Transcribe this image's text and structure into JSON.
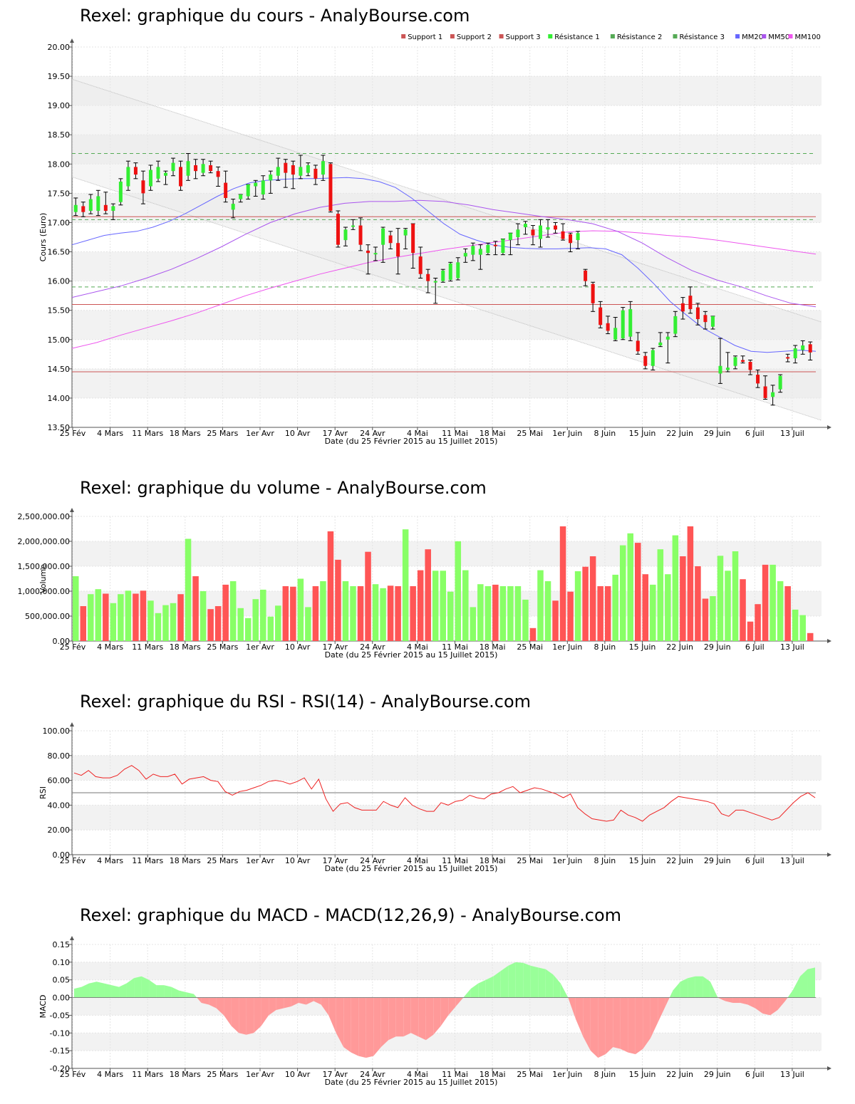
{
  "colors": {
    "up": "#33ee33",
    "down": "#ee1111",
    "vol_up": "#88ff66",
    "vol_down": "#ff5555",
    "support": "#cc5555",
    "resistance": "#55aa55",
    "mm20": "#6666ff",
    "mm50": "#aa55ee",
    "mm100": "#ee55ee",
    "rsi": "#ee2222",
    "macd_pos": "#99ff99",
    "macd_neg": "#ff9999"
  },
  "x_axis": {
    "label": "Date (du 25 Février 2015 au 15 Juillet 2015)",
    "ticks": [
      "25 Fév",
      "4 Mars",
      "11 Mars",
      "18 Mars",
      "25 Mars",
      "1er Avr",
      "10 Avr",
      "17 Avr",
      "24 Avr",
      "4 Mai",
      "11 Mai",
      "18 Mai",
      "25 Mai",
      "1er Juin",
      "8 Juin",
      "15 Juin",
      "22 Juin",
      "29 Juin",
      "6 Juil",
      "13 Juil"
    ],
    "tick_index": [
      0,
      5,
      10,
      15,
      20,
      25,
      30,
      35,
      40,
      46,
      51,
      56,
      61,
      66,
      71,
      76,
      81,
      86,
      91,
      96
    ]
  },
  "price_chart": {
    "title": "Rexel: graphique du cours - AnalyBourse.com",
    "ylabel": "Cours (Euro)",
    "yticks": [
      "13.50",
      "14.00",
      "14.50",
      "15.00",
      "15.50",
      "16.00",
      "16.50",
      "17.00",
      "17.50",
      "18.00",
      "18.50",
      "19.00",
      "19.50",
      "20.00"
    ],
    "legend": [
      "Support 1",
      "Support 2",
      "Support 3",
      "Résistance 1",
      "Résistance 2",
      "Résistance 3",
      "MM20",
      "MM50",
      "MM100"
    ]
  },
  "volume_chart": {
    "title": "Rexel: graphique du volume - AnalyBourse.com",
    "ylabel": "Volume",
    "yticks": [
      "0.00",
      "500,000.00",
      "1,000,000.00",
      "1,500,000.00",
      "2,000,000.00",
      "2,500,000.00"
    ]
  },
  "rsi_chart": {
    "title": "Rexel: graphique du RSI - RSI(14) - AnalyBourse.com",
    "ylabel": "RSI",
    "yticks": [
      "0.00",
      "20.00",
      "40.00",
      "60.00",
      "80.00",
      "100.00"
    ]
  },
  "macd_chart": {
    "title": "Rexel: graphique du MACD - MACD(12,26,9) - AnalyBourse.com",
    "ylabel": "MACD",
    "yticks": [
      "-0.20",
      "-0.15",
      "-0.10",
      "-0.05",
      "0.00",
      "0.05",
      "0.10",
      "0.15"
    ]
  },
  "chart_data": [
    {
      "type": "candlestick",
      "title": "Rexel: graphique du cours - AnalyBourse.com",
      "xlabel": "Date (du 25 Février 2015 au 15 Juillet 2015)",
      "ylabel": "Cours (Euro)",
      "ylim": [
        13.5,
        20.0
      ],
      "grid": true,
      "legend_position": "top-right",
      "ohlc": [
        [
          17.18,
          17.42,
          17.12,
          17.3
        ],
        [
          17.28,
          17.35,
          17.1,
          17.18
        ],
        [
          17.2,
          17.48,
          17.15,
          17.4
        ],
        [
          17.2,
          17.55,
          17.12,
          17.45
        ],
        [
          17.3,
          17.52,
          17.15,
          17.2
        ],
        [
          17.2,
          17.32,
          17.05,
          17.28
        ],
        [
          17.35,
          17.75,
          17.3,
          17.7
        ],
        [
          17.62,
          18.05,
          17.55,
          17.95
        ],
        [
          17.95,
          18.02,
          17.75,
          17.82
        ],
        [
          17.72,
          17.88,
          17.32,
          17.5
        ],
        [
          17.62,
          17.98,
          17.55,
          17.9
        ],
        [
          17.75,
          18.05,
          17.7,
          17.95
        ],
        [
          17.8,
          17.88,
          17.65,
          17.85
        ],
        [
          17.88,
          18.1,
          17.8,
          18.02
        ],
        [
          17.95,
          18.05,
          17.55,
          17.62
        ],
        [
          17.8,
          18.18,
          17.72,
          18.05
        ],
        [
          17.98,
          18.08,
          17.75,
          17.88
        ],
        [
          17.85,
          18.08,
          17.8,
          18.0
        ],
        [
          17.98,
          18.05,
          17.85,
          17.88
        ],
        [
          17.88,
          17.95,
          17.62,
          17.78
        ],
        [
          17.68,
          17.88,
          17.35,
          17.42
        ],
        [
          17.22,
          17.4,
          17.08,
          17.32
        ],
        [
          17.4,
          17.48,
          17.35,
          17.48
        ],
        [
          17.45,
          17.65,
          17.4,
          17.65
        ],
        [
          17.62,
          17.72,
          17.45,
          17.68
        ],
        [
          17.48,
          17.8,
          17.4,
          17.72
        ],
        [
          17.72,
          17.88,
          17.5,
          17.82
        ],
        [
          17.8,
          18.1,
          17.72,
          17.95
        ],
        [
          18.02,
          18.08,
          17.6,
          17.85
        ],
        [
          17.98,
          18.05,
          17.58,
          17.82
        ],
        [
          17.8,
          18.15,
          17.75,
          17.95
        ],
        [
          17.85,
          18.02,
          17.8,
          17.98
        ],
        [
          17.92,
          17.98,
          17.65,
          17.75
        ],
        [
          17.82,
          18.15,
          17.72,
          18.05
        ],
        [
          18.0,
          18.02,
          17.18,
          17.2
        ],
        [
          17.15,
          17.2,
          16.58,
          16.62
        ],
        [
          16.7,
          16.92,
          16.6,
          16.88
        ],
        [
          16.95,
          17.05,
          16.88,
          16.95
        ],
        [
          16.95,
          17.08,
          16.52,
          16.62
        ],
        [
          16.52,
          16.62,
          16.12,
          16.48
        ],
        [
          16.48,
          16.58,
          16.35,
          16.48
        ],
        [
          16.62,
          16.92,
          16.32,
          16.9
        ],
        [
          16.78,
          16.85,
          16.55,
          16.65
        ],
        [
          16.65,
          16.9,
          16.12,
          16.42
        ],
        [
          16.78,
          16.9,
          16.55,
          16.88
        ],
        [
          16.98,
          16.98,
          16.22,
          16.48
        ],
        [
          16.42,
          16.58,
          16.05,
          16.12
        ],
        [
          16.12,
          16.2,
          15.8,
          16.0
        ],
        [
          15.98,
          16.05,
          15.62,
          16.0
        ],
        [
          16.0,
          16.2,
          15.98,
          16.18
        ],
        [
          16.02,
          16.32,
          16.0,
          16.3
        ],
        [
          16.05,
          16.4,
          16.02,
          16.32
        ],
        [
          16.42,
          16.55,
          16.32,
          16.48
        ],
        [
          16.45,
          16.65,
          16.35,
          16.6
        ],
        [
          16.45,
          16.62,
          16.2,
          16.55
        ],
        [
          16.48,
          16.65,
          16.45,
          16.62
        ],
        [
          16.62,
          16.68,
          16.45,
          16.6
        ],
        [
          16.48,
          16.72,
          16.45,
          16.72
        ],
        [
          16.7,
          16.82,
          16.45,
          16.82
        ],
        [
          16.75,
          16.98,
          16.62,
          16.88
        ],
        [
          16.92,
          17.02,
          16.8,
          16.98
        ],
        [
          16.88,
          16.95,
          16.62,
          16.78
        ],
        [
          16.72,
          17.05,
          16.58,
          16.95
        ],
        [
          16.88,
          17.05,
          16.75,
          16.92
        ],
        [
          16.95,
          17.0,
          16.82,
          16.88
        ],
        [
          16.85,
          16.98,
          16.7,
          16.72
        ],
        [
          16.8,
          16.82,
          16.5,
          16.65
        ],
        [
          16.7,
          16.85,
          16.55,
          16.82
        ],
        [
          16.18,
          16.2,
          15.92,
          16.0
        ],
        [
          15.95,
          15.98,
          15.48,
          15.62
        ],
        [
          15.55,
          15.65,
          15.2,
          15.25
        ],
        [
          15.28,
          15.4,
          15.1,
          15.15
        ],
        [
          15.0,
          15.38,
          14.98,
          15.2
        ],
        [
          15.02,
          15.55,
          15.0,
          15.5
        ],
        [
          15.05,
          15.65,
          14.98,
          15.52
        ],
        [
          14.98,
          15.12,
          14.75,
          14.8
        ],
        [
          14.72,
          14.78,
          14.5,
          14.55
        ],
        [
          14.55,
          14.85,
          14.48,
          14.82
        ],
        [
          14.9,
          15.12,
          14.88,
          14.95
        ],
        [
          15.0,
          15.12,
          14.6,
          15.05
        ],
        [
          15.1,
          15.48,
          15.05,
          15.4
        ],
        [
          15.62,
          15.72,
          15.35,
          15.48
        ],
        [
          15.75,
          15.9,
          15.45,
          15.52
        ],
        [
          15.55,
          15.62,
          15.25,
          15.35
        ],
        [
          15.42,
          15.48,
          15.18,
          15.3
        ],
        [
          15.22,
          15.4,
          15.18,
          15.4
        ],
        [
          14.42,
          15.02,
          14.25,
          14.55
        ],
        [
          14.48,
          14.78,
          14.45,
          14.52
        ],
        [
          14.55,
          14.72,
          14.5,
          14.7
        ],
        [
          14.65,
          14.72,
          14.6,
          14.62
        ],
        [
          14.62,
          14.65,
          14.4,
          14.48
        ],
        [
          14.4,
          14.48,
          14.18,
          14.25
        ],
        [
          14.2,
          14.38,
          13.98,
          14.0
        ],
        [
          14.02,
          14.22,
          13.88,
          14.1
        ],
        [
          14.15,
          14.4,
          14.1,
          14.38
        ],
        [
          14.7,
          14.75,
          14.62,
          14.68
        ],
        [
          14.68,
          14.9,
          14.6,
          14.85
        ],
        [
          14.82,
          14.98,
          14.75,
          14.9
        ],
        [
          14.92,
          14.96,
          14.65,
          14.78
        ]
      ],
      "mm20": [
        16.62,
        16.7,
        16.78,
        16.82,
        16.85,
        16.92,
        17.02,
        17.15,
        17.3,
        17.45,
        17.58,
        17.68,
        17.72,
        17.74,
        17.75,
        17.75,
        17.76,
        17.77,
        17.75,
        17.7,
        17.6,
        17.42,
        17.2,
        16.98,
        16.8,
        16.7,
        16.62,
        16.58,
        16.56,
        16.55,
        16.55,
        16.56,
        16.57,
        16.55,
        16.45,
        16.22,
        15.95,
        15.65,
        15.42,
        15.2,
        15.05,
        14.9,
        14.8,
        14.78,
        14.8,
        14.82,
        14.8
      ],
      "mm50": [
        15.72,
        15.82,
        15.92,
        16.05,
        16.2,
        16.38,
        16.58,
        16.8,
        17.0,
        17.15,
        17.26,
        17.33,
        17.36,
        17.36,
        17.38,
        17.36,
        17.3,
        17.22,
        17.16,
        17.1,
        17.05,
        16.98,
        16.85,
        16.65,
        16.4,
        16.18,
        16.02,
        15.9,
        15.75,
        15.62,
        15.56
      ],
      "mm100": [
        14.85,
        14.95,
        15.08,
        15.2,
        15.32,
        15.45,
        15.6,
        15.75,
        15.88,
        16.0,
        16.12,
        16.22,
        16.32,
        16.4,
        16.47,
        16.54,
        16.6,
        16.66,
        16.72,
        16.78,
        16.84,
        16.86,
        16.85,
        16.82,
        16.78,
        16.75,
        16.7,
        16.64,
        16.58,
        16.52,
        16.46
      ],
      "support_lines": [
        17.1,
        15.6,
        14.45
      ],
      "resistance_lines": [
        18.18,
        17.05,
        15.9
      ],
      "channel_upper": [
        19.45,
        15.3
      ],
      "channel_lower": [
        17.78,
        13.62
      ]
    },
    {
      "type": "bar",
      "title": "Rexel: graphique du volume - AnalyBourse.com",
      "xlabel": "Date (du 25 Février 2015 au 15 Juillet 2015)",
      "ylabel": "Volume",
      "ylim": [
        0,
        2600000
      ],
      "values": [
        1300000,
        700000,
        940000,
        1040000,
        950000,
        760000,
        940000,
        1010000,
        950000,
        1010000,
        810000,
        560000,
        720000,
        760000,
        940000,
        2050000,
        1300000,
        1000000,
        640000,
        700000,
        1130000,
        1200000,
        660000,
        460000,
        840000,
        1030000,
        490000,
        710000,
        1100000,
        1090000,
        1250000,
        680000,
        1100000,
        1200000,
        2200000,
        1630000,
        1200000,
        1100000,
        1100000,
        1790000,
        1140000,
        1060000,
        1110000,
        1100000,
        2240000,
        1100000,
        1420000,
        1840000,
        1410000,
        1410000,
        990000,
        2000000,
        1420000,
        680000,
        1140000,
        1100000,
        1130000,
        1100000,
        1100000,
        1100000,
        830000,
        260000,
        1420000,
        1200000,
        810000,
        2300000,
        990000,
        1400000,
        1490000,
        1700000,
        1100000,
        1100000,
        1330000,
        1920000,
        2160000,
        1970000,
        1340000,
        1130000,
        1840000,
        1340000,
        2120000,
        1700000,
        2300000,
        1500000,
        850000,
        900000,
        1710000,
        1410000,
        1800000,
        1240000,
        390000,
        740000,
        1530000,
        1530000,
        1200000,
        1100000,
        630000,
        520000,
        160000
      ]
    },
    {
      "type": "line",
      "title": "Rexel: graphique du RSI - RSI(14) - AnalyBourse.com",
      "xlabel": "Date (du 25 Février 2015 au 15 Juillet 2015)",
      "ylabel": "RSI",
      "ylim": [
        0,
        100
      ],
      "reference_line": 50,
      "values": [
        66,
        64,
        68,
        63,
        62,
        62,
        64,
        69,
        72,
        68,
        61,
        65,
        63,
        63,
        65,
        57,
        61,
        62,
        63,
        60,
        59,
        51,
        48,
        51,
        52,
        54,
        56,
        59,
        60,
        59,
        57,
        59,
        62,
        53,
        61,
        45,
        35,
        41,
        42,
        38,
        36,
        36,
        36,
        43,
        40,
        38,
        46,
        40,
        37,
        35,
        35,
        42,
        40,
        43,
        44,
        48,
        46,
        45,
        49,
        50,
        53,
        55,
        50,
        52,
        54,
        53,
        51,
        49,
        46,
        49,
        38,
        33,
        29,
        28,
        27,
        28,
        36,
        32,
        30,
        27,
        32,
        35,
        38,
        43,
        47,
        46,
        45,
        44,
        43,
        41,
        33,
        31,
        36,
        36,
        34,
        32,
        30,
        28,
        30,
        36,
        42,
        47,
        50,
        46
      ]
    },
    {
      "type": "area",
      "title": "Rexel: graphique du MACD - MACD(12,26,9) - AnalyBourse.com",
      "xlabel": "Date (du 25 Février 2015 au 15 Juillet 2015)",
      "ylabel": "MACD",
      "ylim": [
        -0.2,
        0.15
      ],
      "values": [
        0.025,
        0.03,
        0.04,
        0.045,
        0.04,
        0.035,
        0.03,
        0.04,
        0.055,
        0.06,
        0.05,
        0.035,
        0.035,
        0.03,
        0.02,
        0.015,
        0.01,
        -0.015,
        -0.02,
        -0.03,
        -0.05,
        -0.08,
        -0.1,
        -0.105,
        -0.1,
        -0.08,
        -0.05,
        -0.035,
        -0.03,
        -0.025,
        -0.015,
        -0.02,
        -0.01,
        -0.02,
        -0.05,
        -0.1,
        -0.14,
        -0.155,
        -0.165,
        -0.17,
        -0.165,
        -0.14,
        -0.12,
        -0.11,
        -0.11,
        -0.1,
        -0.11,
        -0.12,
        -0.105,
        -0.08,
        -0.05,
        -0.025,
        0.0,
        0.025,
        0.04,
        0.05,
        0.06,
        0.075,
        0.09,
        0.1,
        0.098,
        0.09,
        0.085,
        0.08,
        0.065,
        0.04,
        0.0,
        -0.06,
        -0.11,
        -0.15,
        -0.17,
        -0.16,
        -0.14,
        -0.145,
        -0.155,
        -0.16,
        -0.145,
        -0.115,
        -0.07,
        -0.025,
        0.02,
        0.045,
        0.055,
        0.06,
        0.06,
        0.045,
        0.0,
        -0.01,
        -0.015,
        -0.015,
        -0.02,
        -0.03,
        -0.045,
        -0.05,
        -0.035,
        -0.01,
        0.02,
        0.06,
        0.08,
        0.085
      ]
    }
  ]
}
